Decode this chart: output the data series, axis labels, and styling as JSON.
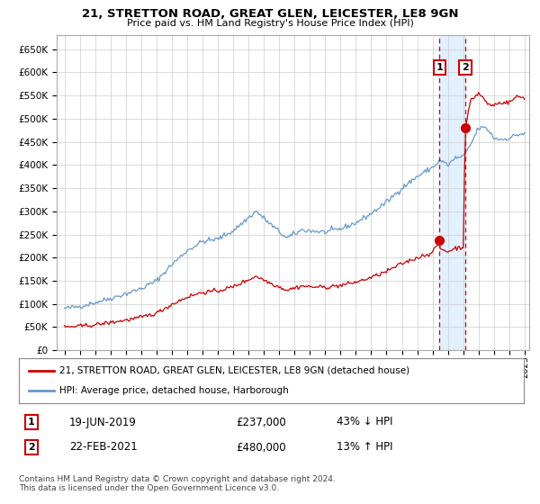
{
  "title_line1": "21, STRETTON ROAD, GREAT GLEN, LEICESTER, LE8 9GN",
  "title_line2": "Price paid vs. HM Land Registry's House Price Index (HPI)",
  "legend_label1": "21, STRETTON ROAD, GREAT GLEN, LEICESTER, LE8 9GN (detached house)",
  "legend_label2": "HPI: Average price, detached house, Harborough",
  "annotation1_date": "19-JUN-2019",
  "annotation1_price": "£237,000",
  "annotation1_hpi": "43% ↓ HPI",
  "annotation2_date": "22-FEB-2021",
  "annotation2_price": "£480,000",
  "annotation2_hpi": "13% ↑ HPI",
  "footnote": "Contains HM Land Registry data © Crown copyright and database right 2024.\nThis data is licensed under the Open Government Licence v3.0.",
  "red_color": "#cc0000",
  "blue_color": "#6699cc",
  "span_color": "#ddeeff",
  "background_color": "#ffffff",
  "plot_bg_color": "#ffffff",
  "grid_color": "#cccccc",
  "ylim": [
    0,
    680000
  ],
  "yticks": [
    0,
    50000,
    100000,
    150000,
    200000,
    250000,
    300000,
    350000,
    400000,
    450000,
    500000,
    550000,
    600000,
    650000
  ],
  "start_year": 1995,
  "end_year": 2025,
  "sale1_year": 2019.46,
  "sale1_value": 237000,
  "sale2_year": 2021.13,
  "sale2_value": 480000,
  "hpi_waypoints": [
    [
      1995.0,
      90000
    ],
    [
      1996.0,
      95000
    ],
    [
      1997.0,
      103000
    ],
    [
      1998.0,
      112000
    ],
    [
      1999.0,
      122000
    ],
    [
      2000.0,
      133000
    ],
    [
      2001.0,
      150000
    ],
    [
      2002.0,
      185000
    ],
    [
      2003.0,
      215000
    ],
    [
      2004.0,
      235000
    ],
    [
      2005.0,
      240000
    ],
    [
      2006.0,
      258000
    ],
    [
      2007.5,
      300000
    ],
    [
      2008.5,
      270000
    ],
    [
      2009.5,
      242000
    ],
    [
      2010.5,
      260000
    ],
    [
      2011.0,
      258000
    ],
    [
      2012.0,
      255000
    ],
    [
      2013.0,
      262000
    ],
    [
      2014.0,
      275000
    ],
    [
      2015.0,
      295000
    ],
    [
      2016.0,
      320000
    ],
    [
      2017.0,
      350000
    ],
    [
      2018.0,
      375000
    ],
    [
      2019.0,
      395000
    ],
    [
      2019.5,
      410000
    ],
    [
      2020.0,
      400000
    ],
    [
      2020.5,
      415000
    ],
    [
      2021.0,
      418000
    ],
    [
      2021.5,
      445000
    ],
    [
      2022.0,
      480000
    ],
    [
      2022.5,
      480000
    ],
    [
      2022.8,
      468000
    ],
    [
      2023.0,
      458000
    ],
    [
      2023.5,
      455000
    ],
    [
      2024.0,
      458000
    ],
    [
      2024.5,
      465000
    ],
    [
      2025.0,
      468000
    ]
  ],
  "red_waypoints": [
    [
      1995.0,
      50000
    ],
    [
      1996.0,
      52000
    ],
    [
      1997.0,
      55000
    ],
    [
      1998.0,
      60000
    ],
    [
      1999.0,
      65000
    ],
    [
      2000.0,
      71000
    ],
    [
      2001.0,
      80000
    ],
    [
      2002.0,
      99000
    ],
    [
      2003.0,
      115000
    ],
    [
      2004.0,
      125000
    ],
    [
      2005.0,
      128000
    ],
    [
      2006.0,
      137000
    ],
    [
      2007.5,
      160000
    ],
    [
      2008.5,
      144000
    ],
    [
      2009.5,
      130000
    ],
    [
      2010.5,
      139000
    ],
    [
      2011.0,
      137000
    ],
    [
      2012.0,
      136000
    ],
    [
      2013.0,
      140000
    ],
    [
      2014.0,
      147000
    ],
    [
      2015.0,
      157000
    ],
    [
      2016.0,
      170000
    ],
    [
      2017.0,
      187000
    ],
    [
      2018.0,
      200000
    ],
    [
      2019.0,
      211000
    ],
    [
      2019.46,
      237000
    ],
    [
      2019.5,
      219000
    ],
    [
      2020.0,
      213000
    ],
    [
      2020.5,
      221000
    ],
    [
      2021.0,
      222000
    ],
    [
      2021.13,
      480000
    ],
    [
      2021.5,
      540000
    ],
    [
      2022.0,
      555000
    ],
    [
      2022.3,
      545000
    ],
    [
      2022.5,
      535000
    ],
    [
      2022.8,
      528000
    ],
    [
      2023.0,
      530000
    ],
    [
      2023.5,
      535000
    ],
    [
      2024.0,
      535000
    ],
    [
      2024.5,
      548000
    ],
    [
      2025.0,
      545000
    ]
  ]
}
